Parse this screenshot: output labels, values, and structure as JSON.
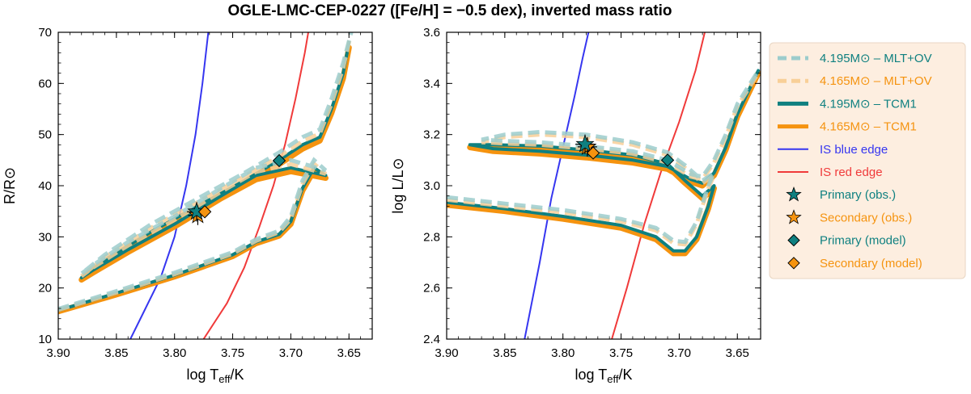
{
  "figure": {
    "title": "OGLE-LMC-CEP-0227 ([Fe/H] = −0.5 dex), inverted mass ratio"
  },
  "colors": {
    "teal": "#0f8080",
    "orange": "#f5930f",
    "teal_light": "#9ccccc",
    "orange_light": "#f8cf98",
    "blue": "#3636f0",
    "red": "#f03a3a",
    "legend_bg": "#fdeee0"
  },
  "legend": {
    "items": [
      {
        "label": "4.195M⊙ – MLT+OV",
        "color": "#0f8080",
        "kind": "dashed-light"
      },
      {
        "label": "4.165M⊙ – MLT+OV",
        "color": "#f5930f",
        "kind": "dashed-light"
      },
      {
        "label": "4.195M⊙ – TCM1",
        "color": "#0f8080",
        "kind": "thick"
      },
      {
        "label": "4.165M⊙ – TCM1",
        "color": "#f5930f",
        "kind": "thick"
      },
      {
        "label": "IS blue edge",
        "color": "#3636f0",
        "kind": "thin"
      },
      {
        "label": "IS red edge",
        "color": "#f03a3a",
        "kind": "thin"
      },
      {
        "label": "Primary (obs.)",
        "color": "#0f8080",
        "kind": "star"
      },
      {
        "label": "Secondary (obs.)",
        "color": "#f5930f",
        "kind": "star"
      },
      {
        "label": "Primary (model)",
        "color": "#0f8080",
        "kind": "diamond"
      },
      {
        "label": "Secondary (model)",
        "color": "#f5930f",
        "kind": "diamond"
      }
    ]
  },
  "chart_data": [
    {
      "type": "line",
      "panel": "left",
      "xlabel": "log T_eff/K",
      "ylabel": "R/R⊙",
      "xlim": [
        3.9,
        3.63
      ],
      "ylim": [
        10,
        70
      ],
      "xticks": [
        "3.90",
        "3.85",
        "3.80",
        "3.75",
        "3.70",
        "3.65"
      ],
      "yticks": [
        "10",
        "20",
        "30",
        "40",
        "50",
        "60",
        "70"
      ],
      "tracks": {
        "tcm1_primary": [
          [
            3.9,
            15.6
          ],
          [
            3.85,
            19.0
          ],
          [
            3.8,
            22.5
          ],
          [
            3.75,
            26.5
          ],
          [
            3.73,
            29.0
          ],
          [
            3.71,
            30.5
          ],
          [
            3.7,
            33.0
          ],
          [
            3.69,
            39.5
          ],
          [
            3.68,
            43.5
          ],
          [
            3.67,
            42.0
          ],
          [
            3.7,
            43.5
          ],
          [
            3.73,
            42.0
          ],
          [
            3.76,
            38.0
          ],
          [
            3.8,
            32.5
          ],
          [
            3.84,
            27.5
          ],
          [
            3.87,
            23.5
          ],
          [
            3.88,
            22.0
          ],
          [
            3.86,
            25.5
          ],
          [
            3.82,
            31.0
          ],
          [
            3.78,
            36.0
          ],
          [
            3.74,
            41.0
          ],
          [
            3.71,
            45.0
          ],
          [
            3.69,
            48.0
          ],
          [
            3.675,
            49.5
          ],
          [
            3.665,
            55.0
          ],
          [
            3.655,
            62.0
          ],
          [
            3.65,
            68.0
          ]
        ],
        "tcm1_secondary": [
          [
            3.9,
            15.4
          ],
          [
            3.85,
            18.7
          ],
          [
            3.8,
            22.2
          ],
          [
            3.75,
            26.2
          ],
          [
            3.73,
            28.7
          ],
          [
            3.71,
            30.2
          ],
          [
            3.7,
            32.5
          ],
          [
            3.69,
            39.0
          ],
          [
            3.68,
            43.0
          ],
          [
            3.67,
            41.5
          ],
          [
            3.7,
            42.8
          ],
          [
            3.73,
            41.2
          ],
          [
            3.76,
            37.5
          ],
          [
            3.8,
            32.0
          ],
          [
            3.84,
            27.0
          ],
          [
            3.87,
            23.0
          ],
          [
            3.88,
            21.6
          ],
          [
            3.86,
            25.0
          ],
          [
            3.82,
            30.5
          ],
          [
            3.78,
            35.4
          ],
          [
            3.74,
            40.3
          ],
          [
            3.71,
            44.2
          ],
          [
            3.69,
            47.2
          ],
          [
            3.675,
            48.8
          ],
          [
            3.665,
            54.2
          ],
          [
            3.655,
            61.0
          ],
          [
            3.65,
            67.0
          ]
        ],
        "mltov_primary": [
          [
            3.9,
            15.9
          ],
          [
            3.85,
            19.4
          ],
          [
            3.8,
            23.0
          ],
          [
            3.75,
            27.0
          ],
          [
            3.73,
            29.5
          ],
          [
            3.71,
            31.2
          ],
          [
            3.7,
            34.0
          ],
          [
            3.69,
            41.0
          ],
          [
            3.68,
            45.0
          ],
          [
            3.67,
            43.0
          ],
          [
            3.7,
            45.0
          ],
          [
            3.73,
            43.5
          ],
          [
            3.76,
            39.5
          ],
          [
            3.8,
            34.0
          ],
          [
            3.84,
            29.0
          ],
          [
            3.87,
            24.5
          ],
          [
            3.88,
            22.8
          ],
          [
            3.86,
            26.5
          ],
          [
            3.82,
            32.5
          ],
          [
            3.78,
            37.5
          ],
          [
            3.74,
            42.5
          ],
          [
            3.71,
            46.5
          ],
          [
            3.69,
            49.5
          ],
          [
            3.675,
            51.0
          ],
          [
            3.665,
            57.0
          ],
          [
            3.655,
            64.0
          ],
          [
            3.648,
            70.0
          ]
        ],
        "mltov_secondary": [
          [
            3.9,
            15.7
          ],
          [
            3.85,
            19.1
          ],
          [
            3.8,
            22.7
          ],
          [
            3.75,
            26.7
          ],
          [
            3.73,
            29.2
          ],
          [
            3.71,
            30.9
          ],
          [
            3.7,
            33.5
          ],
          [
            3.69,
            40.3
          ],
          [
            3.68,
            44.3
          ],
          [
            3.67,
            42.3
          ],
          [
            3.7,
            44.2
          ],
          [
            3.73,
            42.7
          ],
          [
            3.76,
            38.8
          ],
          [
            3.8,
            33.3
          ],
          [
            3.84,
            28.3
          ],
          [
            3.87,
            24.0
          ],
          [
            3.88,
            22.3
          ],
          [
            3.86,
            26.0
          ],
          [
            3.82,
            31.8
          ],
          [
            3.78,
            36.8
          ],
          [
            3.74,
            41.8
          ],
          [
            3.71,
            45.7
          ],
          [
            3.69,
            48.7
          ],
          [
            3.675,
            50.2
          ],
          [
            3.665,
            56.0
          ],
          [
            3.655,
            63.0
          ],
          [
            3.649,
            69.0
          ]
        ],
        "is_blue_edge": [
          [
            3.838,
            10
          ],
          [
            3.825,
            16
          ],
          [
            3.812,
            22
          ],
          [
            3.8,
            30
          ],
          [
            3.79,
            40
          ],
          [
            3.782,
            50
          ],
          [
            3.776,
            60
          ],
          [
            3.771,
            70
          ]
        ],
        "is_red_edge": [
          [
            3.775,
            10
          ],
          [
            3.755,
            17
          ],
          [
            3.74,
            24
          ],
          [
            3.727,
            32
          ],
          [
            3.715,
            40
          ],
          [
            3.705,
            48
          ],
          [
            3.696,
            57
          ],
          [
            3.688,
            66
          ],
          [
            3.685,
            70
          ]
        ]
      },
      "observed": {
        "primary": [
          3.781,
          34.9
        ],
        "secondary": [
          3.78,
          34.2
        ]
      },
      "model": {
        "primary": [
          3.71,
          44.9
        ],
        "secondary": [
          3.774,
          34.9
        ]
      }
    },
    {
      "type": "line",
      "panel": "right",
      "xlabel": "log T_eff/K",
      "ylabel": "log L/L⊙",
      "xlim": [
        3.9,
        3.63
      ],
      "ylim": [
        2.4,
        3.6
      ],
      "xticks": [
        "3.90",
        "3.85",
        "3.80",
        "3.75",
        "3.70",
        "3.65"
      ],
      "yticks": [
        "2.4",
        "2.6",
        "2.8",
        "3.0",
        "3.2",
        "3.4",
        "3.6"
      ],
      "tracks": {
        "tcm1_primary": [
          [
            3.9,
            2.935
          ],
          [
            3.85,
            2.91
          ],
          [
            3.8,
            2.88
          ],
          [
            3.75,
            2.845
          ],
          [
            3.72,
            2.8
          ],
          [
            3.705,
            2.745
          ],
          [
            3.695,
            2.745
          ],
          [
            3.685,
            2.8
          ],
          [
            3.675,
            2.92
          ],
          [
            3.67,
            3.0
          ],
          [
            3.68,
            2.96
          ],
          [
            3.695,
            3.02
          ],
          [
            3.71,
            3.085
          ],
          [
            3.74,
            3.12
          ],
          [
            3.78,
            3.14
          ],
          [
            3.82,
            3.155
          ],
          [
            3.86,
            3.16
          ],
          [
            3.88,
            3.16
          ],
          [
            3.86,
            3.145
          ],
          [
            3.82,
            3.135
          ],
          [
            3.78,
            3.12
          ],
          [
            3.74,
            3.1
          ],
          [
            3.71,
            3.075
          ],
          [
            3.69,
            3.025
          ],
          [
            3.68,
            3.01
          ],
          [
            3.67,
            3.05
          ],
          [
            3.66,
            3.15
          ],
          [
            3.65,
            3.28
          ],
          [
            3.632,
            3.45
          ]
        ],
        "tcm1_secondary": [
          [
            3.9,
            2.925
          ],
          [
            3.85,
            2.9
          ],
          [
            3.8,
            2.87
          ],
          [
            3.75,
            2.835
          ],
          [
            3.72,
            2.79
          ],
          [
            3.705,
            2.735
          ],
          [
            3.695,
            2.735
          ],
          [
            3.685,
            2.79
          ],
          [
            3.675,
            2.91
          ],
          [
            3.67,
            2.99
          ],
          [
            3.68,
            2.95
          ],
          [
            3.695,
            3.01
          ],
          [
            3.71,
            3.075
          ],
          [
            3.74,
            3.11
          ],
          [
            3.78,
            3.13
          ],
          [
            3.82,
            3.145
          ],
          [
            3.86,
            3.15
          ],
          [
            3.88,
            3.15
          ],
          [
            3.86,
            3.135
          ],
          [
            3.82,
            3.125
          ],
          [
            3.78,
            3.11
          ],
          [
            3.74,
            3.09
          ],
          [
            3.71,
            3.065
          ],
          [
            3.69,
            3.015
          ],
          [
            3.68,
            3.0
          ],
          [
            3.67,
            3.04
          ],
          [
            3.66,
            3.14
          ],
          [
            3.65,
            3.27
          ],
          [
            3.632,
            3.44
          ]
        ],
        "mltov_primary": [
          [
            3.9,
            2.955
          ],
          [
            3.85,
            2.93
          ],
          [
            3.8,
            2.905
          ],
          [
            3.75,
            2.87
          ],
          [
            3.72,
            2.835
          ],
          [
            3.705,
            2.785
          ],
          [
            3.695,
            2.78
          ],
          [
            3.685,
            2.86
          ],
          [
            3.675,
            3.0
          ],
          [
            3.67,
            3.05
          ],
          [
            3.68,
            3.02
          ],
          [
            3.695,
            3.08
          ],
          [
            3.71,
            3.13
          ],
          [
            3.74,
            3.17
          ],
          [
            3.78,
            3.2
          ],
          [
            3.82,
            3.21
          ],
          [
            3.85,
            3.2
          ],
          [
            3.87,
            3.18
          ],
          [
            3.85,
            3.175
          ],
          [
            3.82,
            3.17
          ],
          [
            3.78,
            3.155
          ],
          [
            3.74,
            3.135
          ],
          [
            3.71,
            3.1
          ],
          [
            3.69,
            3.045
          ],
          [
            3.68,
            3.035
          ],
          [
            3.67,
            3.1
          ],
          [
            3.66,
            3.2
          ],
          [
            3.65,
            3.32
          ],
          [
            3.632,
            3.45
          ]
        ],
        "mltov_secondary": [
          [
            3.9,
            2.945
          ],
          [
            3.85,
            2.92
          ],
          [
            3.8,
            2.895
          ],
          [
            3.75,
            2.86
          ],
          [
            3.72,
            2.825
          ],
          [
            3.705,
            2.775
          ],
          [
            3.695,
            2.77
          ],
          [
            3.685,
            2.85
          ],
          [
            3.675,
            2.99
          ],
          [
            3.67,
            3.04
          ],
          [
            3.68,
            3.01
          ],
          [
            3.695,
            3.07
          ],
          [
            3.71,
            3.12
          ],
          [
            3.74,
            3.16
          ],
          [
            3.78,
            3.19
          ],
          [
            3.82,
            3.2
          ],
          [
            3.85,
            3.19
          ],
          [
            3.87,
            3.17
          ],
          [
            3.85,
            3.165
          ],
          [
            3.82,
            3.16
          ],
          [
            3.78,
            3.145
          ],
          [
            3.74,
            3.125
          ],
          [
            3.71,
            3.09
          ],
          [
            3.69,
            3.035
          ],
          [
            3.68,
            3.025
          ],
          [
            3.67,
            3.09
          ],
          [
            3.66,
            3.19
          ],
          [
            3.65,
            3.31
          ],
          [
            3.632,
            3.44
          ]
        ],
        "is_blue_edge": [
          [
            3.833,
            2.4
          ],
          [
            3.82,
            2.7
          ],
          [
            3.81,
            2.95
          ],
          [
            3.8,
            3.15
          ],
          [
            3.79,
            3.35
          ],
          [
            3.783,
            3.5
          ],
          [
            3.778,
            3.6
          ]
        ],
        "is_red_edge": [
          [
            3.758,
            2.4
          ],
          [
            3.745,
            2.6
          ],
          [
            3.73,
            2.85
          ],
          [
            3.716,
            3.05
          ],
          [
            3.7,
            3.25
          ],
          [
            3.686,
            3.45
          ],
          [
            3.678,
            3.6
          ]
        ]
      },
      "observed": {
        "primary": [
          3.781,
          3.162
        ],
        "secondary": [
          3.779,
          3.152
        ]
      },
      "model": {
        "primary": [
          3.71,
          3.1
        ],
        "secondary": [
          3.774,
          3.128
        ]
      }
    }
  ]
}
